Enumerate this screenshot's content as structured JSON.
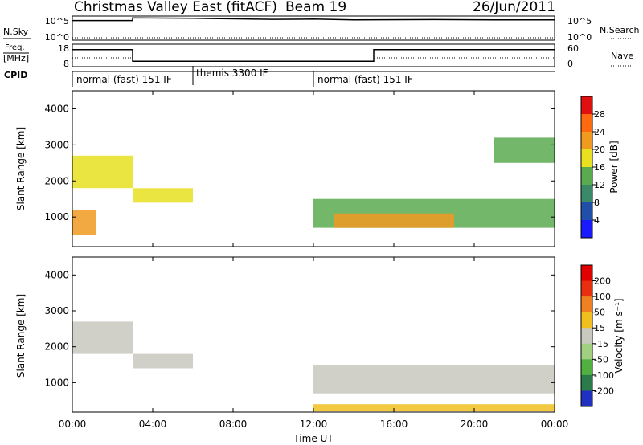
{
  "header": {
    "title": "Christmas Valley East (fitACF)",
    "beam": "Beam 19",
    "date": "26/Jun/2011"
  },
  "summary": {
    "nsky_label": "N.Sky",
    "nsky_ticks": [
      "10^5",
      "10^0"
    ],
    "nsearch_label": "N.Search",
    "nsearch_ticks": [
      "10^5",
      "10^0"
    ],
    "freq_label": "Freq.",
    "freq_unit": "[MHz]",
    "freq_ticks": [
      "18",
      "8"
    ],
    "nave_label": "Nave",
    "nave_ticks": [
      "60",
      "0"
    ],
    "cpid_label": "CPID",
    "cpid_segments": [
      {
        "label": "normal (fast) 151 IF",
        "start_hour": 0,
        "end_hour": 6
      },
      {
        "label": "themis 3300 IF",
        "start_hour": 6,
        "end_hour": 12
      },
      {
        "label": "normal (fast) 151 IF",
        "start_hour": 12,
        "end_hour": 24
      }
    ]
  },
  "power_panel": {
    "ylabel": "Slant Range [km]",
    "yticks": [
      "1000",
      "2000",
      "3000",
      "4000"
    ],
    "colorbar_label": "Power [dB]",
    "colorbar_ticks": [
      "4",
      "8",
      "12",
      "16",
      "20",
      "24",
      "28"
    ],
    "colors": [
      "#1a1aff",
      "#1f4fa8",
      "#3a8a6a",
      "#5aaa50",
      "#e8e020",
      "#f09a20",
      "#ff6a10",
      "#e01010"
    ]
  },
  "velocity_panel": {
    "ylabel": "Slant Range [km]",
    "yticks": [
      "1000",
      "2000",
      "3000",
      "4000"
    ],
    "colorbar_label": "Velocity [m s⁻¹]",
    "colorbar_ticks": [
      "200",
      "100",
      "50",
      "15",
      "-15",
      "-50",
      "-100",
      "-200"
    ],
    "colors": [
      "#2030c0",
      "#2a7a4a",
      "#50b040",
      "#a0d080",
      "#c8c8c0",
      "#f0c020",
      "#f08020",
      "#e83010",
      "#e00000"
    ]
  },
  "xaxis": {
    "label": "Time UT",
    "ticks": [
      "00:00",
      "04:00",
      "08:00",
      "12:00",
      "16:00",
      "20:00",
      "00:00"
    ]
  },
  "chart_data": [
    {
      "type": "line",
      "title": "Christmas Valley East (fitACF)",
      "ylabel": "N.Sky",
      "yscale": "log",
      "ylim": [
        1,
        100000
      ],
      "x": [
        0,
        3,
        3,
        6,
        10,
        12,
        14,
        18,
        21,
        24
      ],
      "series": [
        {
          "values": [
            20000,
            20000,
            90000,
            70000,
            40000,
            45000,
            30000,
            35000,
            30000,
            30000
          ]
        }
      ]
    },
    {
      "type": "line",
      "ylabel": "Freq. [MHz]",
      "ylim": [
        8,
        18
      ],
      "x": [
        0,
        3,
        3,
        15,
        15,
        24
      ],
      "series": [
        {
          "values": [
            16,
            16,
            10,
            10,
            16,
            16
          ]
        }
      ]
    },
    {
      "type": "heatmap",
      "title": "Power [dB]",
      "xlabel": "Time UT",
      "ylabel": "Slant Range [km]",
      "xlim": [
        0,
        24
      ],
      "ylim": [
        180,
        4500
      ],
      "clim": [
        0,
        30
      ],
      "regions": [
        {
          "t0": 0,
          "t1": 3,
          "r0": 1800,
          "r1": 2700,
          "value": 18
        },
        {
          "t0": 0,
          "t1": 1.2,
          "r0": 500,
          "r1": 1200,
          "value": 22
        },
        {
          "t0": 3,
          "t1": 6,
          "r0": 1400,
          "r1": 1800,
          "value": 16
        },
        {
          "t0": 12,
          "t1": 24,
          "r0": 700,
          "r1": 1500,
          "value": 12
        },
        {
          "t0": 13,
          "t1": 19,
          "r0": 700,
          "r1": 1100,
          "value": 22
        },
        {
          "t0": 21,
          "t1": 24,
          "r0": 2500,
          "r1": 3200,
          "value": 14
        }
      ]
    },
    {
      "type": "heatmap",
      "title": "Velocity [m s⁻¹]",
      "xlabel": "Time UT",
      "ylabel": "Slant Range [km]",
      "xlim": [
        0,
        24
      ],
      "ylim": [
        180,
        4500
      ],
      "clim": [
        -200,
        200
      ],
      "regions": [
        {
          "t0": 0,
          "t1": 3,
          "r0": 1800,
          "r1": 2700,
          "value": 0
        },
        {
          "t0": 3,
          "t1": 6,
          "r0": 1400,
          "r1": 1800,
          "value": 0
        },
        {
          "t0": 12,
          "t1": 24,
          "r0": 700,
          "r1": 1500,
          "value": 0
        },
        {
          "t0": 12,
          "t1": 24,
          "r0": 200,
          "r1": 400,
          "value": -50
        }
      ]
    }
  ]
}
